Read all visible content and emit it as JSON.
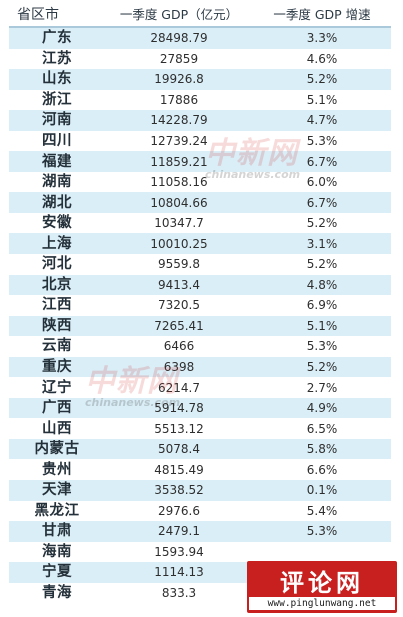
{
  "header": {
    "region": "省区市",
    "gdp": "一季度 GDP（亿元）",
    "growth": "一季度 GDP 增速"
  },
  "rows": [
    {
      "region": "广东",
      "gdp": "28498.79",
      "growth": "3.3%"
    },
    {
      "region": "江苏",
      "gdp": "27859",
      "growth": "4.6%"
    },
    {
      "region": "山东",
      "gdp": "19926.8",
      "growth": "5.2%"
    },
    {
      "region": "浙江",
      "gdp": "17886",
      "growth": "5.1%"
    },
    {
      "region": "河南",
      "gdp": "14228.79",
      "growth": "4.7%"
    },
    {
      "region": "四川",
      "gdp": "12739.24",
      "growth": "5.3%"
    },
    {
      "region": "福建",
      "gdp": "11859.21",
      "growth": "6.7%"
    },
    {
      "region": "湖南",
      "gdp": "11058.16",
      "growth": "6.0%"
    },
    {
      "region": "湖北",
      "gdp": "10804.66",
      "growth": "6.7%"
    },
    {
      "region": "安徽",
      "gdp": "10347.7",
      "growth": "5.2%"
    },
    {
      "region": "上海",
      "gdp": "10010.25",
      "growth": "3.1%"
    },
    {
      "region": "河北",
      "gdp": "9559.8",
      "growth": "5.2%"
    },
    {
      "region": "北京",
      "gdp": "9413.4",
      "growth": "4.8%"
    },
    {
      "region": "江西",
      "gdp": "7320.5",
      "growth": "6.9%"
    },
    {
      "region": "陕西",
      "gdp": "7265.41",
      "growth": "5.1%"
    },
    {
      "region": "云南",
      "gdp": "6466",
      "growth": "5.3%"
    },
    {
      "region": "重庆",
      "gdp": "6398",
      "growth": "5.2%"
    },
    {
      "region": "辽宁",
      "gdp": "6214.7",
      "growth": "2.7%"
    },
    {
      "region": "广西",
      "gdp": "5914.78",
      "growth": "4.9%"
    },
    {
      "region": "山西",
      "gdp": "5513.12",
      "growth": "6.5%"
    },
    {
      "region": "内蒙古",
      "gdp": "5078.4",
      "growth": "5.8%"
    },
    {
      "region": "贵州",
      "gdp": "4815.49",
      "growth": "6.6%"
    },
    {
      "region": "天津",
      "gdp": "3538.52",
      "growth": "0.1%"
    },
    {
      "region": "黑龙江",
      "gdp": "2976.6",
      "growth": "5.4%"
    },
    {
      "region": "甘肃",
      "gdp": "2479.1",
      "growth": "5.3%"
    },
    {
      "region": "海南",
      "gdp": "1593.94",
      "growth": ""
    },
    {
      "region": "宁夏",
      "gdp": "1114.13",
      "growth": ""
    },
    {
      "region": "青海",
      "gdp": "833.3",
      "growth": ""
    }
  ],
  "watermark": {
    "cn": "中新网",
    "en": "chinanews.com"
  },
  "logo": {
    "cn": "评论网",
    "url": "www.pinglunwang.net"
  }
}
